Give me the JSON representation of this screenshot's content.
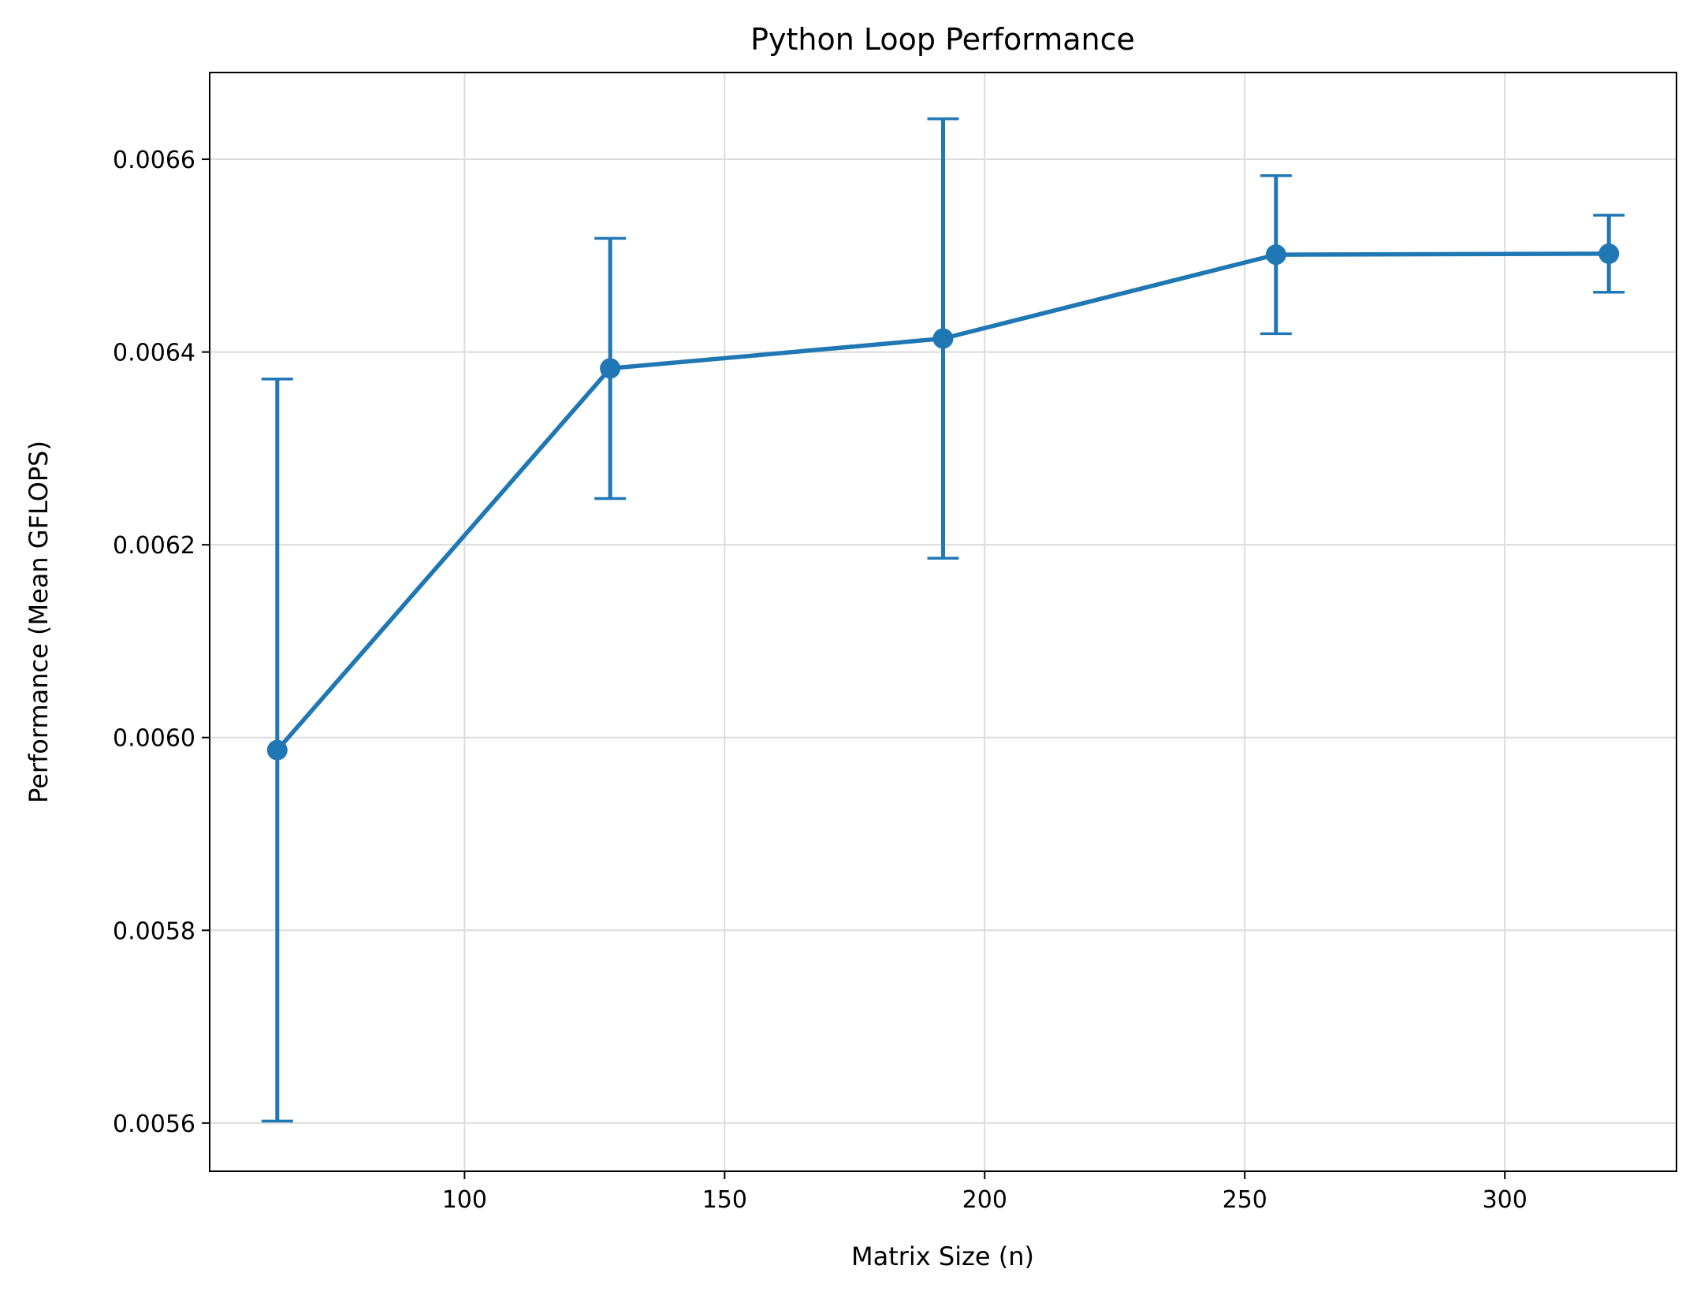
{
  "chart_data": {
    "type": "line",
    "title": "Python Loop Performance",
    "xlabel": "Matrix Size (n)",
    "ylabel": "Performance (Mean GFLOPS)",
    "xlim": [
      51,
      333
    ],
    "ylim": [
      0.00555,
      0.00669
    ],
    "xticks": [
      100,
      150,
      200,
      250,
      300
    ],
    "xtick_labels": [
      "100",
      "150",
      "200",
      "250",
      300
    ],
    "yticks": [
      0.0056,
      0.0058,
      0.006,
      0.0062,
      0.0064,
      0.0066
    ],
    "ytick_labels": [
      "0.0056",
      "0.0058",
      "0.0060",
      "0.0062",
      "0.0064",
      "0.0066"
    ],
    "grid": true,
    "series": [
      {
        "color": "#1f77b4",
        "x": [
          64,
          128,
          192,
          256,
          320
        ],
        "y": [
          0.005987,
          0.006383,
          0.006414,
          0.006501,
          0.006502
        ],
        "yerr": [
          0.000385,
          0.000135,
          0.000228,
          8.2e-05,
          4e-05
        ]
      }
    ]
  }
}
